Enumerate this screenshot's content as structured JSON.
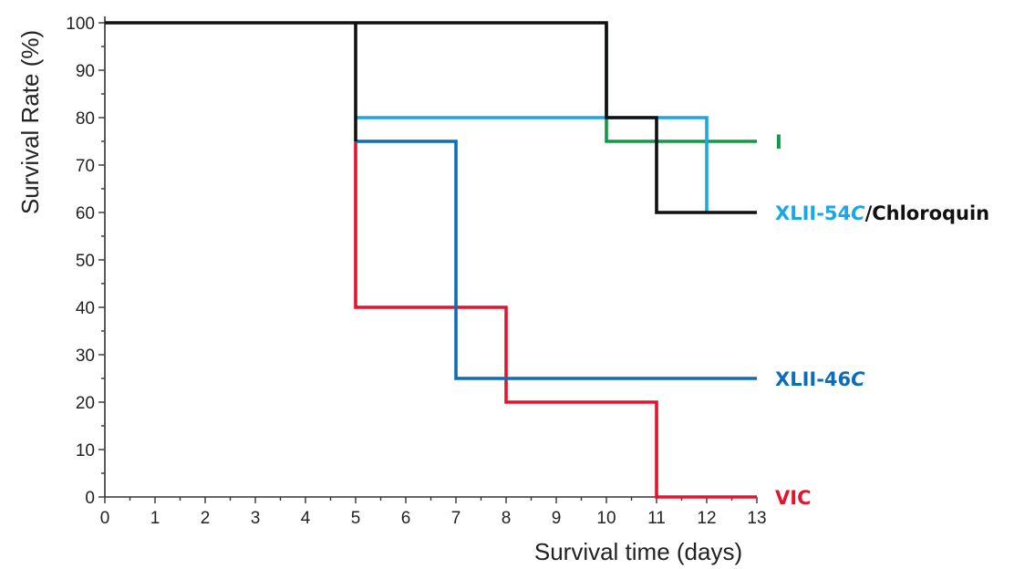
{
  "chart_data": {
    "type": "line",
    "step": true,
    "xlabel": "Survival time (days)",
    "ylabel": "Survival Rate (%)",
    "xlim": [
      0,
      13
    ],
    "ylim": [
      0,
      100
    ],
    "x_ticks": [
      0,
      1,
      2,
      3,
      4,
      5,
      6,
      7,
      8,
      9,
      10,
      11,
      12,
      13
    ],
    "y_ticks": [
      0,
      10,
      20,
      30,
      40,
      50,
      60,
      70,
      80,
      90,
      100
    ],
    "grid": false,
    "legend": "inline-right",
    "series": [
      {
        "key": "vic",
        "color": "#e5142d",
        "label_parts": [
          {
            "text": "VIC",
            "italic": false,
            "color": "#e5142d"
          }
        ],
        "label_at_y": 0,
        "points": [
          [
            5,
            75
          ],
          [
            5,
            40
          ],
          [
            8,
            40
          ],
          [
            8,
            20
          ],
          [
            11,
            20
          ],
          [
            11,
            0
          ],
          [
            13,
            0
          ]
        ]
      },
      {
        "key": "xlii-46c",
        "color": "#0e6db8",
        "label_parts": [
          {
            "text": "XLII-46",
            "italic": false,
            "color": "#0e6db8"
          },
          {
            "text": "C",
            "italic": true,
            "color": "#0e6db8"
          }
        ],
        "label_at_y": 25,
        "points": [
          [
            5,
            75
          ],
          [
            7,
            75
          ],
          [
            7,
            25
          ],
          [
            13,
            25
          ]
        ]
      },
      {
        "key": "i",
        "color": "#109a45",
        "label_parts": [
          {
            "text": "I",
            "italic": false,
            "color": "#109a45"
          }
        ],
        "label_at_y": 75,
        "points": [
          [
            10,
            100
          ],
          [
            10,
            75
          ],
          [
            13,
            75
          ]
        ]
      },
      {
        "key": "xlii-54c",
        "color": "#1aa7e4",
        "label_parts": [
          {
            "text": "XLII-54",
            "italic": false,
            "color": "#1aa7e4"
          },
          {
            "text": "C",
            "italic": true,
            "color": "#1aa7e4"
          },
          {
            "text": "/Chloroquin",
            "italic": false,
            "color": "#111111"
          }
        ],
        "label_at_y": 60,
        "points": [
          [
            5,
            80
          ],
          [
            12,
            80
          ],
          [
            12,
            60
          ]
        ]
      },
      {
        "key": "chloroquin",
        "color": "#111111",
        "label_parts": [],
        "points": [
          [
            0,
            100
          ],
          [
            5,
            100
          ],
          [
            5,
            75
          ],
          [
            5,
            100
          ],
          [
            10,
            100
          ],
          [
            10,
            80
          ],
          [
            11,
            80
          ],
          [
            11,
            60
          ],
          [
            13,
            60
          ]
        ]
      }
    ]
  }
}
